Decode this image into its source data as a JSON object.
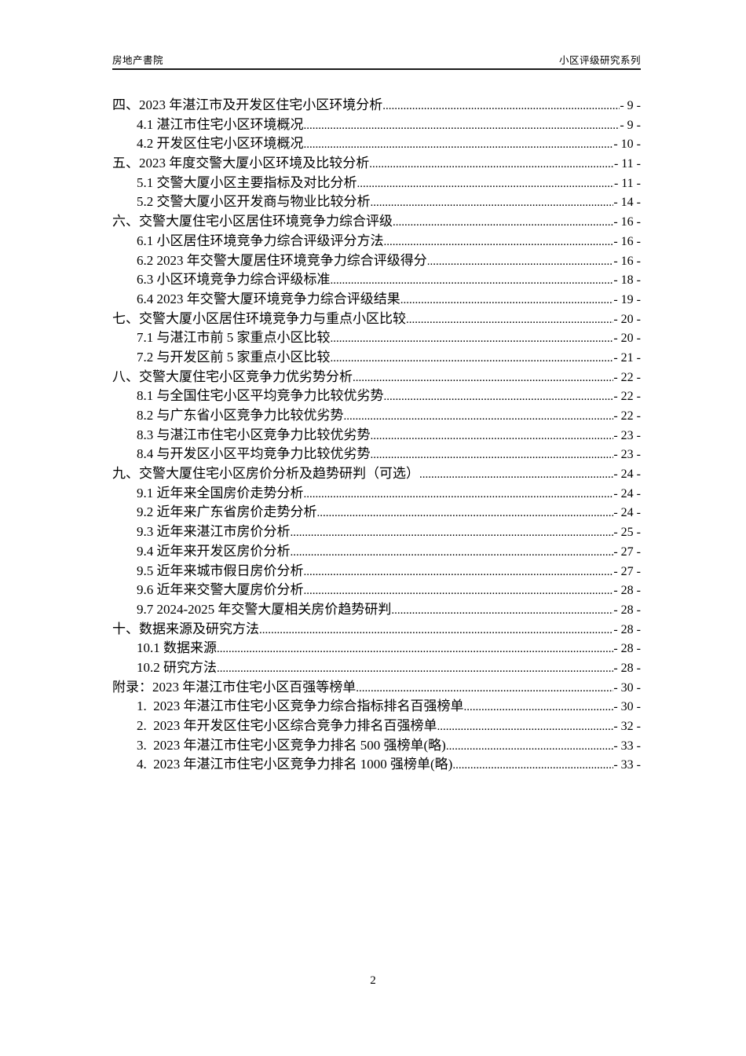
{
  "header": {
    "left": "房地产書院",
    "right": "小区评级研究系列"
  },
  "toc": {
    "leader_dots": "........................................................................................................................................................",
    "entries": [
      {
        "level": 1,
        "label": "四、2023 年湛江市及开发区住宅小区环境分析",
        "page": "- 9 -"
      },
      {
        "level": 2,
        "label": "4.1 湛江市住宅小区环境概况",
        "page": "- 9 -"
      },
      {
        "level": 2,
        "label": "4.2 开发区住宅小区环境概况",
        "page": "- 10 -"
      },
      {
        "level": 1,
        "label": "五、2023 年度交警大厦小区环境及比较分析",
        "page": "- 11 -"
      },
      {
        "level": 2,
        "label": "5.1 交警大厦小区主要指标及对比分析",
        "page": "- 11 -"
      },
      {
        "level": 2,
        "label": "5.2 交警大厦小区开发商与物业比较分析",
        "page": "- 14 -"
      },
      {
        "level": 1,
        "label": "六、交警大厦住宅小区居住环境竞争力综合评级",
        "page": "- 16 -"
      },
      {
        "level": 2,
        "label": "6.1 小区居住环境竞争力综合评级评分方法",
        "page": "- 16 -"
      },
      {
        "level": 2,
        "label": "6.2 2023 年交警大厦居住环境竞争力综合评级得分",
        "page": "- 16 -"
      },
      {
        "level": 2,
        "label": "6.3 小区环境竞争力综合评级标准",
        "page": "- 18 -"
      },
      {
        "level": 2,
        "label": "6.4 2023 年交警大厦环境竞争力综合评级结果",
        "page": "- 19 -"
      },
      {
        "level": 1,
        "label": "七、交警大厦小区居住环境竞争力与重点小区比较",
        "page": "- 20 -"
      },
      {
        "level": 2,
        "label": "7.1 与湛江市前 5 家重点小区比较",
        "page": "- 20 -"
      },
      {
        "level": 2,
        "label": "7.2 与开发区前 5 家重点小区比较",
        "page": "- 21 -"
      },
      {
        "level": 1,
        "label": "八、交警大厦住宅小区竞争力优劣势分析",
        "page": "- 22 -"
      },
      {
        "level": 2,
        "label": "8.1 与全国住宅小区平均竞争力比较优劣势",
        "page": "- 22 -"
      },
      {
        "level": 2,
        "label": "8.2 与广东省小区竞争力比较优劣势",
        "page": "- 22 -"
      },
      {
        "level": 2,
        "label": "8.3 与湛江市住宅小区竞争力比较优劣势",
        "page": "- 23 -"
      },
      {
        "level": 2,
        "label": "8.4 与开发区小区平均竞争力比较优劣势",
        "page": "- 23 -"
      },
      {
        "level": 1,
        "label": "九、交警大厦住宅小区房价分析及趋势研判（可选）",
        "page": "- 24 -"
      },
      {
        "level": 2,
        "label": "9.1 近年来全国房价走势分析",
        "page": "- 24 -"
      },
      {
        "level": 2,
        "label": "9.2 近年来广东省房价走势分析",
        "page": "- 24 -"
      },
      {
        "level": 2,
        "label": "9.3 近年来湛江市房价分析",
        "page": "- 25 -"
      },
      {
        "level": 2,
        "label": "9.4 近年来开发区房价分析",
        "page": "- 27 -"
      },
      {
        "level": 2,
        "label": "9.5 近年来城市假日房价分析",
        "page": "- 27 -"
      },
      {
        "level": 2,
        "label": "9.6 近年来交警大厦房价分析",
        "page": "- 28 -"
      },
      {
        "level": 2,
        "label": "9.7 2024-2025 年交警大厦相关房价趋势研判",
        "page": "- 28 -"
      },
      {
        "level": 1,
        "label": "十、数据来源及研究方法",
        "page": "- 28 -"
      },
      {
        "level": 2,
        "label": "10.1 数据来源",
        "page": "- 28 -"
      },
      {
        "level": 2,
        "label": "10.2 研究方法",
        "page": "- 28 -"
      },
      {
        "level": 1,
        "label": "附录：2023 年湛江市住宅小区百强等榜单",
        "page": "- 30 -"
      },
      {
        "level": 2,
        "label": "1.  2023 年湛江市住宅小区竞争力综合指标排名百强榜单",
        "page": "- 30 -"
      },
      {
        "level": 2,
        "label": "2.  2023 年开发区住宅小区综合竞争力排名百强榜单",
        "page": "- 32 -"
      },
      {
        "level": 2,
        "label": "3.  2023 年湛江市住宅小区竞争力排名 500 强榜单(略)",
        "page": "- 33 -"
      },
      {
        "level": 2,
        "label": "4.  2023 年湛江市住宅小区竞争力排名 1000 强榜单(略)",
        "page": "- 33 -"
      }
    ]
  },
  "footer": {
    "page_number": "2"
  }
}
